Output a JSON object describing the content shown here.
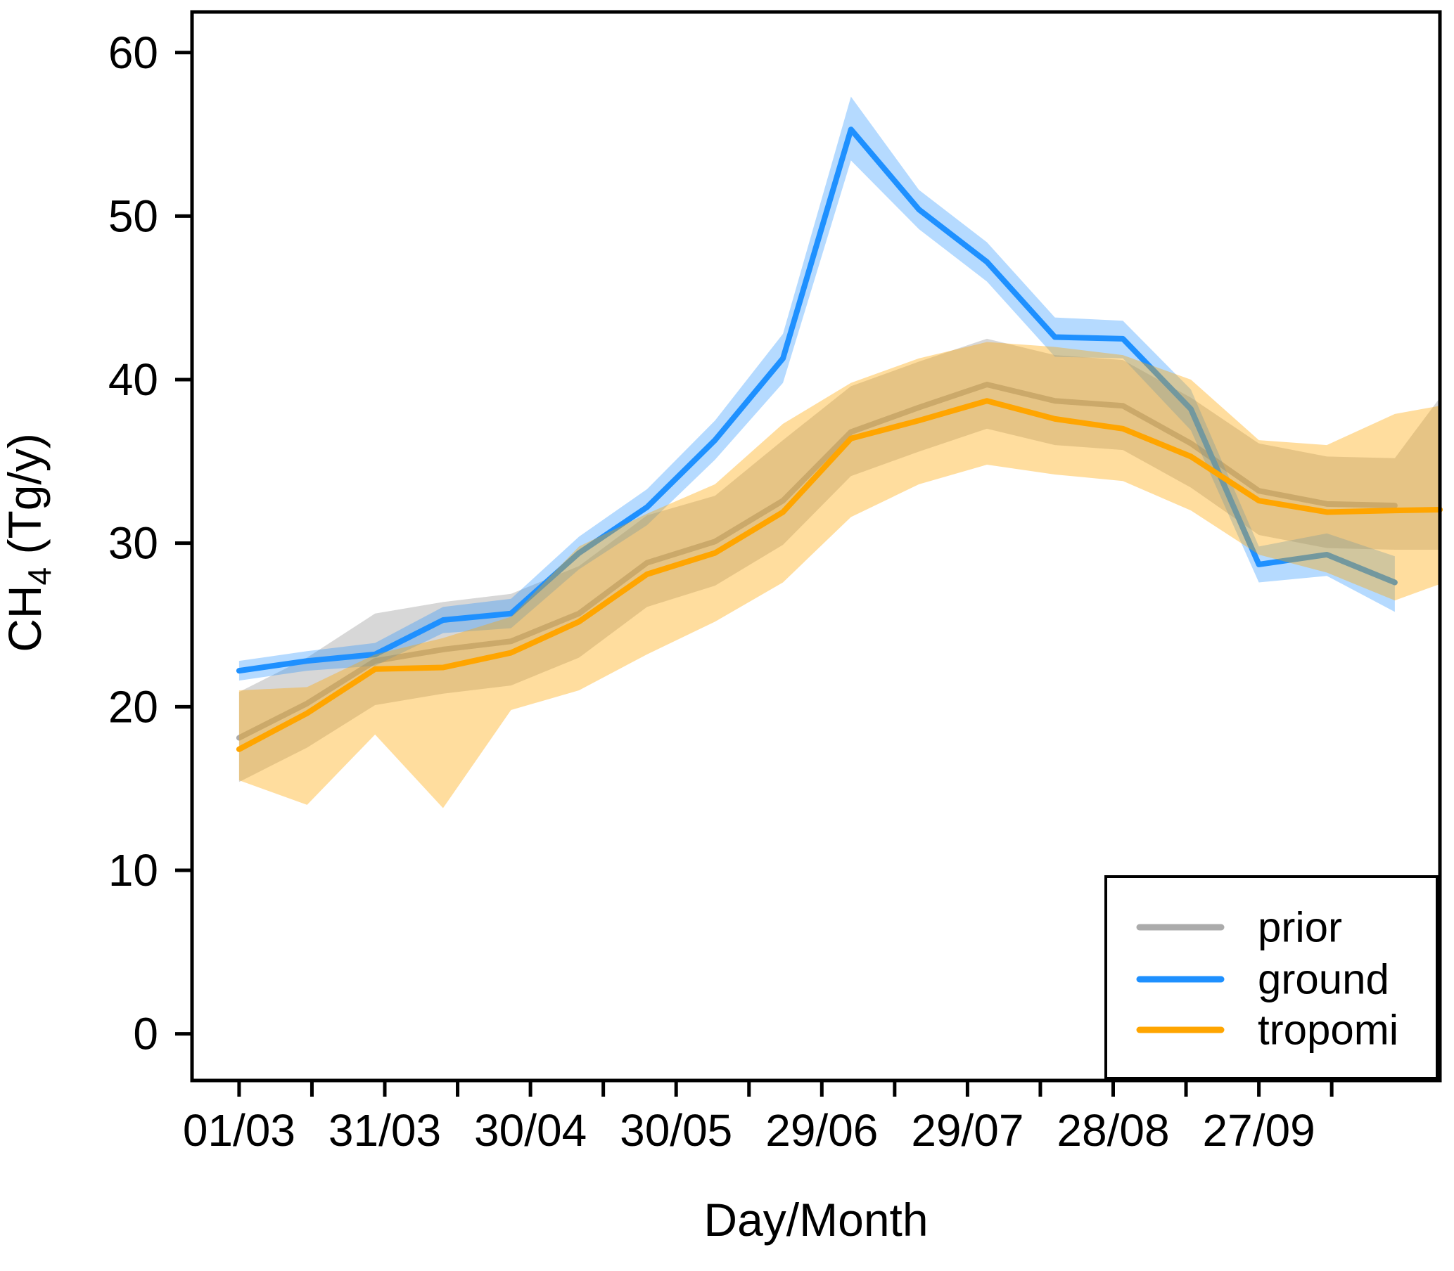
{
  "chart_data": {
    "type": "line",
    "title": "",
    "xlabel": "Day/Month",
    "ylabel": {
      "prefix": "CH",
      "sub": "4",
      "suffix": " (Tg/y)"
    },
    "grid": "off",
    "x_axis": {
      "major_tick_days": [
        0,
        30,
        60,
        90,
        120,
        150,
        180,
        210
      ],
      "major_tick_labels": [
        "01/03",
        "31/03",
        "30/04",
        "30/05",
        "29/06",
        "29/07",
        "28/08",
        "27/09"
      ],
      "minor_tick_days": [
        15,
        45,
        75,
        105,
        135,
        165,
        195,
        225
      ]
    },
    "y_axis": {
      "tick_values": [
        0,
        10,
        20,
        30,
        40,
        50,
        60
      ],
      "tick_labels": [
        "0",
        "10",
        "20",
        "30",
        "40",
        "50",
        "60"
      ],
      "range_shown": [
        -2.9,
        62.5
      ]
    },
    "x_days": [
      0,
      14,
      28,
      42,
      56,
      70,
      84,
      98,
      112,
      126,
      140,
      154,
      168,
      182,
      196,
      210,
      224,
      238
    ],
    "x_dates": [
      "01/03",
      "15/03",
      "29/03",
      "12/04",
      "26/04",
      "10/05",
      "24/05",
      "07/06",
      "21/06",
      "05/07",
      "19/07",
      "02/08",
      "16/08",
      "30/08",
      "13/09",
      "27/09",
      "11/10",
      "25/10"
    ],
    "series": [
      {
        "name": "prior",
        "color": "#ABABAB",
        "band_color": "rgba(172,172,172,0.48)",
        "values": [
          18.1,
          20.2,
          22.8,
          23.5,
          24.0,
          25.7,
          28.8,
          30.1,
          32.6,
          36.8,
          38.3,
          39.7,
          38.7,
          38.4,
          36.1,
          33.2,
          32.4,
          32.3
        ],
        "lo": [
          15.4,
          17.5,
          20.1,
          20.8,
          21.3,
          23.0,
          26.1,
          27.4,
          29.9,
          34.1,
          35.6,
          37.0,
          36.0,
          35.7,
          33.4,
          30.5,
          29.7,
          29.6
        ],
        "hi": [
          20.9,
          23.0,
          25.7,
          26.4,
          26.9,
          28.6,
          31.7,
          32.9,
          36.3,
          39.6,
          41.1,
          42.5,
          41.5,
          41.2,
          38.9,
          36.1,
          35.3,
          35.2
        ],
        "edge": {
          "day": 247.3,
          "value": 32.3,
          "lo": 29.6,
          "hi": 38.9,
          "line_to_edge": false
        }
      },
      {
        "name": "ground",
        "color": "#1E90FF",
        "band_color": "rgba(30,144,255,0.33)",
        "values": [
          22.2,
          22.8,
          23.2,
          25.3,
          25.7,
          29.4,
          32.2,
          36.3,
          41.3,
          55.3,
          50.4,
          47.2,
          42.6,
          42.5,
          38.2,
          28.7,
          29.3,
          27.6
        ],
        "lo": [
          21.6,
          22.2,
          22.5,
          24.5,
          24.8,
          28.4,
          31.1,
          35.1,
          39.8,
          53.4,
          49.2,
          46.0,
          41.4,
          41.3,
          36.9,
          27.6,
          28.0,
          25.8
        ],
        "hi": [
          22.8,
          23.4,
          23.9,
          26.1,
          26.6,
          30.4,
          33.3,
          37.5,
          42.8,
          57.3,
          51.6,
          48.4,
          43.8,
          43.6,
          39.4,
          29.8,
          30.6,
          29.2
        ]
      },
      {
        "name": "tropomi",
        "color": "#FFA500",
        "band_color": "rgba(255,166,0,0.38)",
        "values": [
          17.4,
          19.6,
          22.3,
          22.4,
          23.3,
          25.2,
          28.1,
          29.4,
          31.9,
          36.4,
          37.5,
          38.7,
          37.6,
          37.0,
          35.3,
          32.6,
          31.9,
          32.0
        ],
        "lo": [
          15.5,
          14.0,
          18.3,
          13.8,
          19.8,
          21.0,
          23.2,
          25.2,
          27.6,
          31.6,
          33.6,
          34.8,
          34.2,
          33.8,
          32.0,
          29.3,
          28.2,
          26.5
        ],
        "hi": [
          21.0,
          21.2,
          23.2,
          24.2,
          25.5,
          29.8,
          31.8,
          33.6,
          37.3,
          39.8,
          41.3,
          42.3,
          42.0,
          41.5,
          40.0,
          36.3,
          36.0,
          37.9
        ],
        "edge": {
          "day": 247.3,
          "value": 32.05,
          "lo": 27.5,
          "hi": 38.4,
          "line_to_edge": true
        }
      }
    ],
    "legend": {
      "position": "bottom-right",
      "entries": [
        {
          "label": "prior"
        },
        {
          "label": "ground"
        },
        {
          "label": "tropomi"
        }
      ]
    }
  }
}
